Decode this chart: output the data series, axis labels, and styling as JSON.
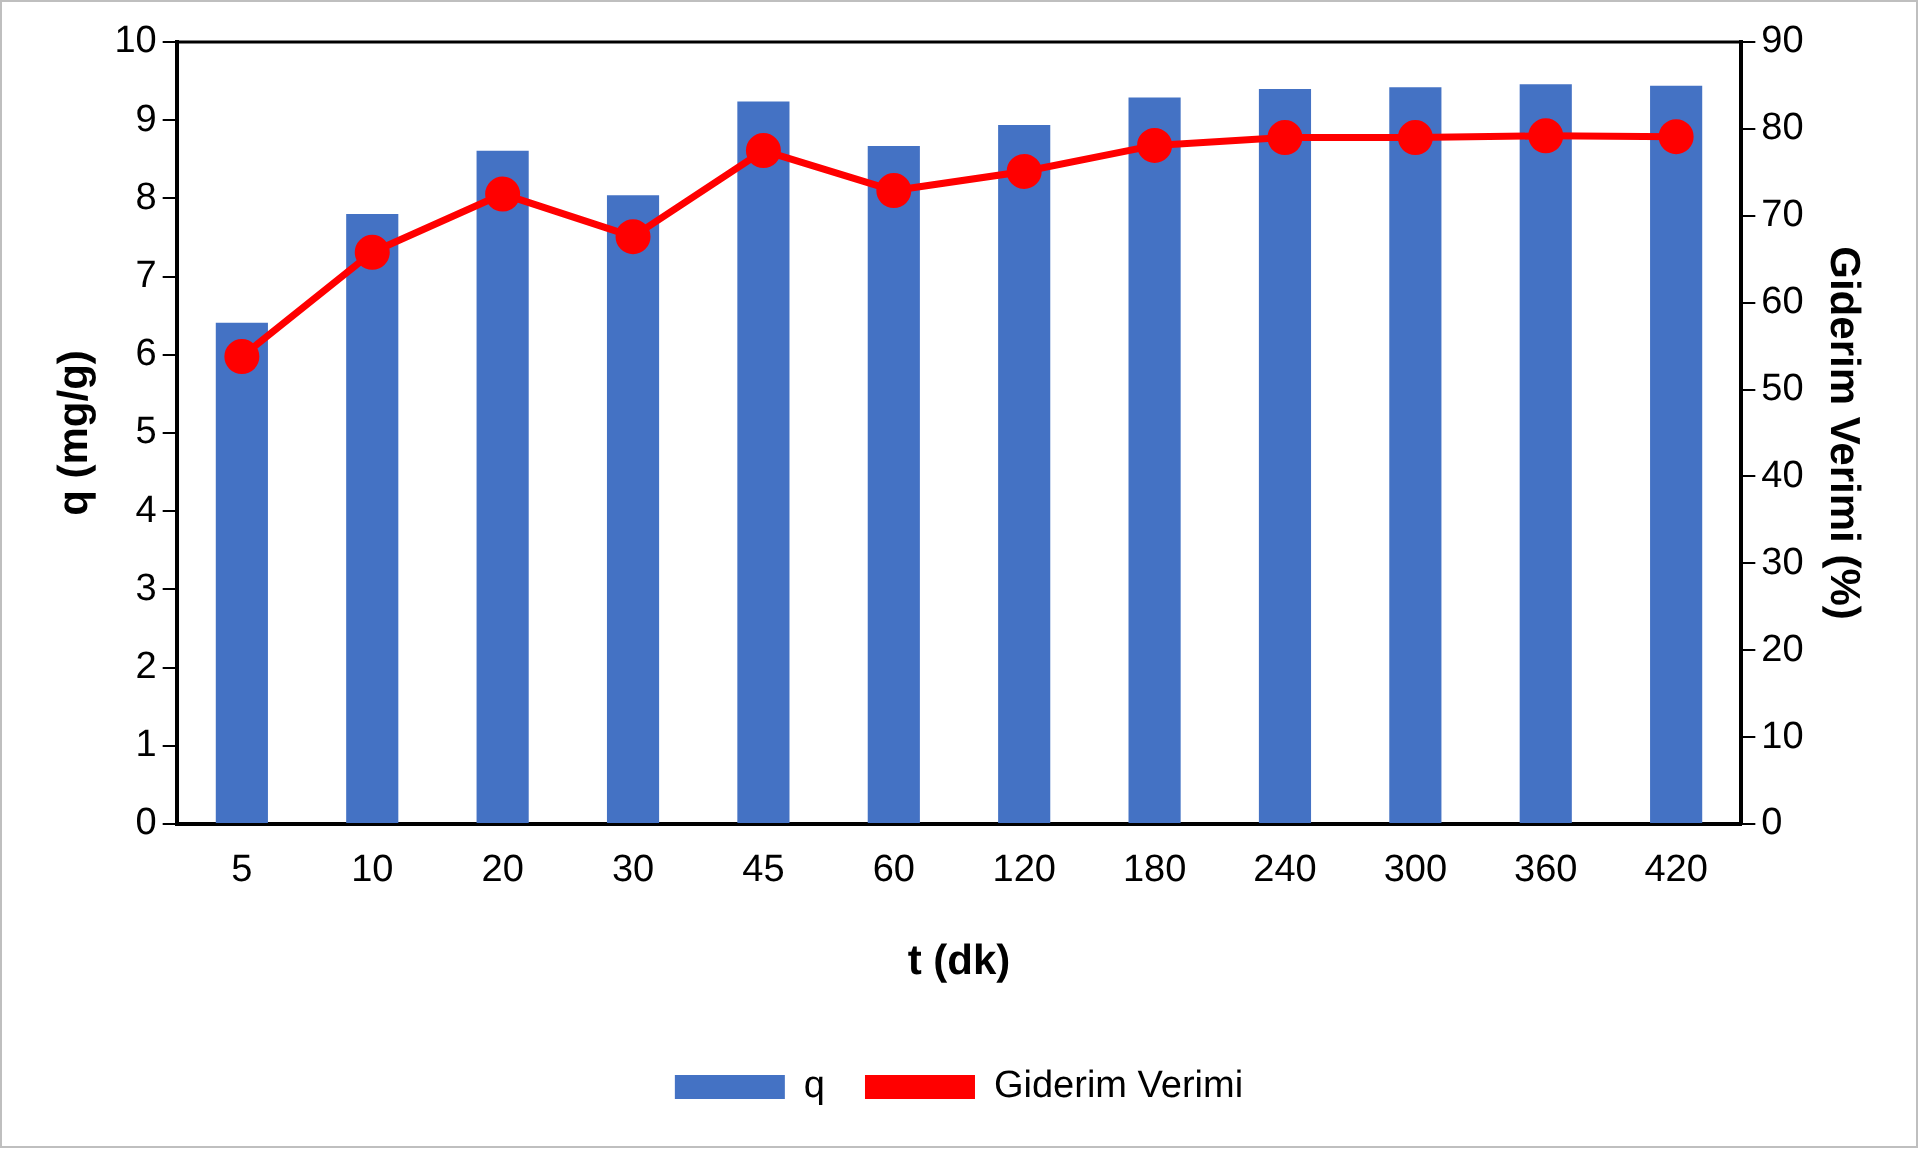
{
  "chart_data": {
    "type": "bar",
    "xlabel": "t (dk)",
    "ylabel": "q (mg/g)",
    "y2label": "Giderim Verimi (%)",
    "categories": [
      "5",
      "10",
      "20",
      "30",
      "45",
      "60",
      "120",
      "180",
      "240",
      "300",
      "360",
      "420"
    ],
    "series": [
      {
        "name": "q",
        "color": "#4472c4",
        "values": [
          6.41,
          7.8,
          8.61,
          8.04,
          9.24,
          8.67,
          8.94,
          9.29,
          9.4,
          9.42,
          9.46,
          9.44
        ]
      },
      {
        "name": "Giderim Verimi",
        "type": "line",
        "axis": "y2",
        "color": "#ff0000",
        "marker": "circle",
        "values": [
          53.8,
          65.8,
          72.5,
          67.6,
          77.5,
          72.9,
          75.1,
          78.1,
          79.0,
          79.0,
          79.2,
          79.1
        ]
      }
    ],
    "ylim": [
      0,
      10
    ],
    "yticks": [
      0,
      1,
      2,
      3,
      4,
      5,
      6,
      7,
      8,
      9,
      10
    ],
    "y2lim": [
      0,
      90
    ],
    "y2ticks": [
      0,
      10,
      20,
      30,
      40,
      50,
      60,
      70,
      80,
      90
    ],
    "grid": false,
    "legend": "bottom"
  }
}
